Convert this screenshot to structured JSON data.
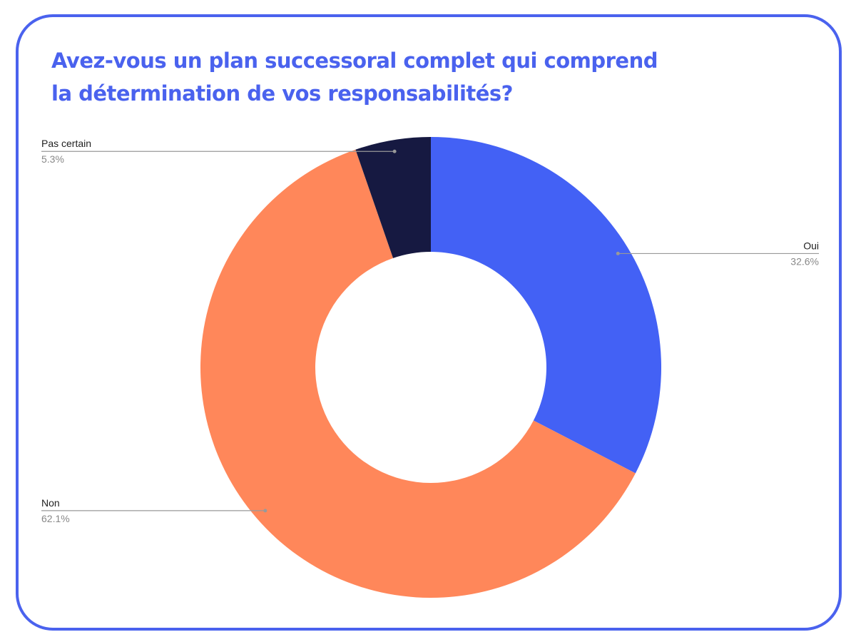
{
  "chart_data": {
    "type": "donut",
    "title": "Avez-vous un plan successoral complet qui comprend la détermination de vos responsabilités?",
    "categories": [
      "Oui",
      "Non",
      "Pas certain"
    ],
    "values": [
      32.6,
      62.1,
      5.3
    ],
    "value_labels": [
      "32.6%",
      "62.1%",
      "5.3%"
    ],
    "colors": [
      "#4361f5",
      "#ff875a",
      "#161941"
    ]
  }
}
